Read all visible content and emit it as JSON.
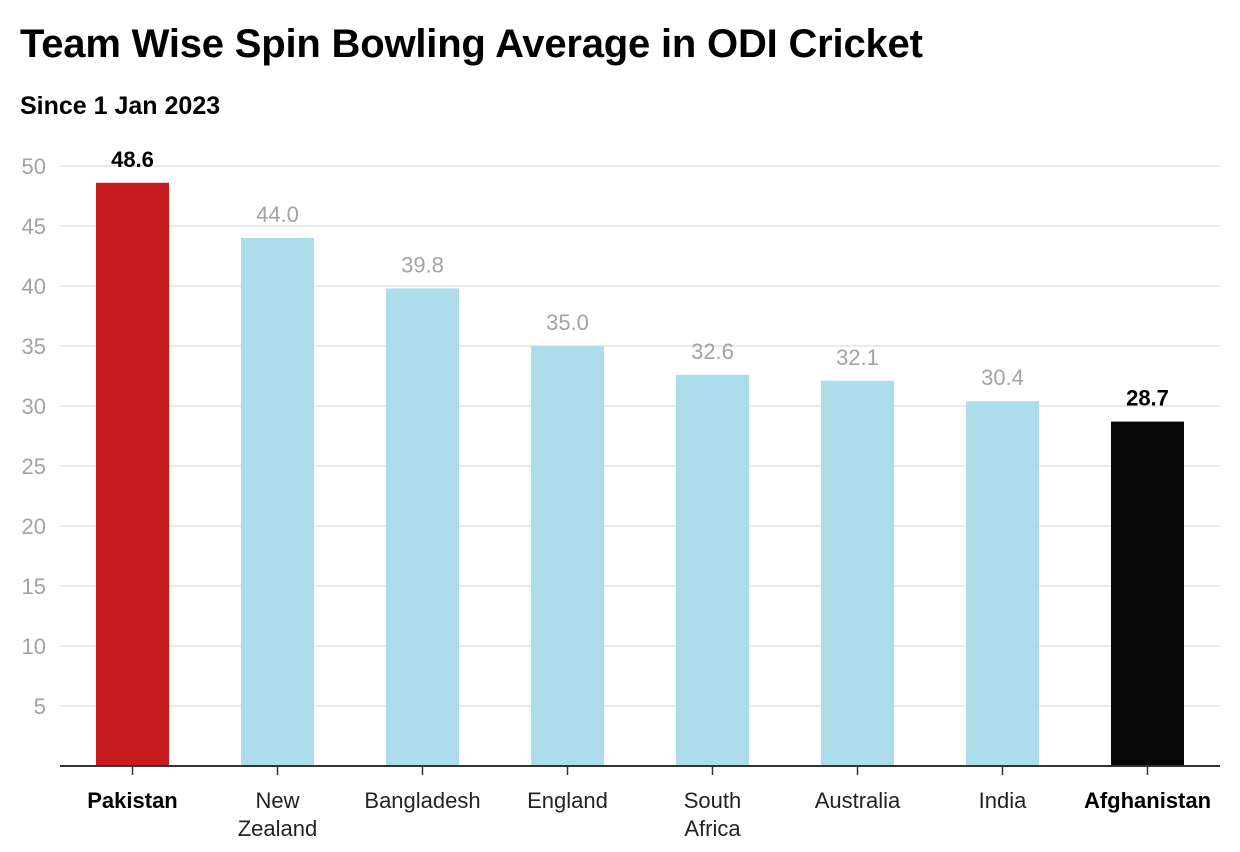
{
  "chart_data": {
    "type": "bar",
    "title": "Team Wise Spin Bowling Average in ODI Cricket",
    "subtitle": "Since 1 Jan 2023",
    "xlabel": "",
    "ylabel": "",
    "categories": [
      [
        "Pakistan"
      ],
      [
        "New",
        "Zealand"
      ],
      [
        "Bangladesh"
      ],
      [
        "England"
      ],
      [
        "South",
        "Africa"
      ],
      [
        "Australia"
      ],
      [
        "India"
      ],
      [
        "Afghanistan"
      ]
    ],
    "values": [
      48.6,
      44.0,
      39.8,
      35.0,
      32.6,
      32.1,
      30.4,
      28.7
    ],
    "data_labels": [
      "48.6",
      "44.0",
      "39.8",
      "35.0",
      "32.6",
      "32.1",
      "30.4",
      "28.7"
    ],
    "highlighted": [
      true,
      false,
      false,
      false,
      false,
      false,
      false,
      true
    ],
    "colors": [
      "#c51b1f",
      "#addcea",
      "#addcea",
      "#addcea",
      "#addcea",
      "#addcea",
      "#addcea",
      "#070707"
    ],
    "yticks": [
      5,
      10,
      15,
      20,
      25,
      30,
      35,
      40,
      45,
      50
    ],
    "ylim": [
      0,
      50
    ],
    "grid": true,
    "legend": "none"
  }
}
